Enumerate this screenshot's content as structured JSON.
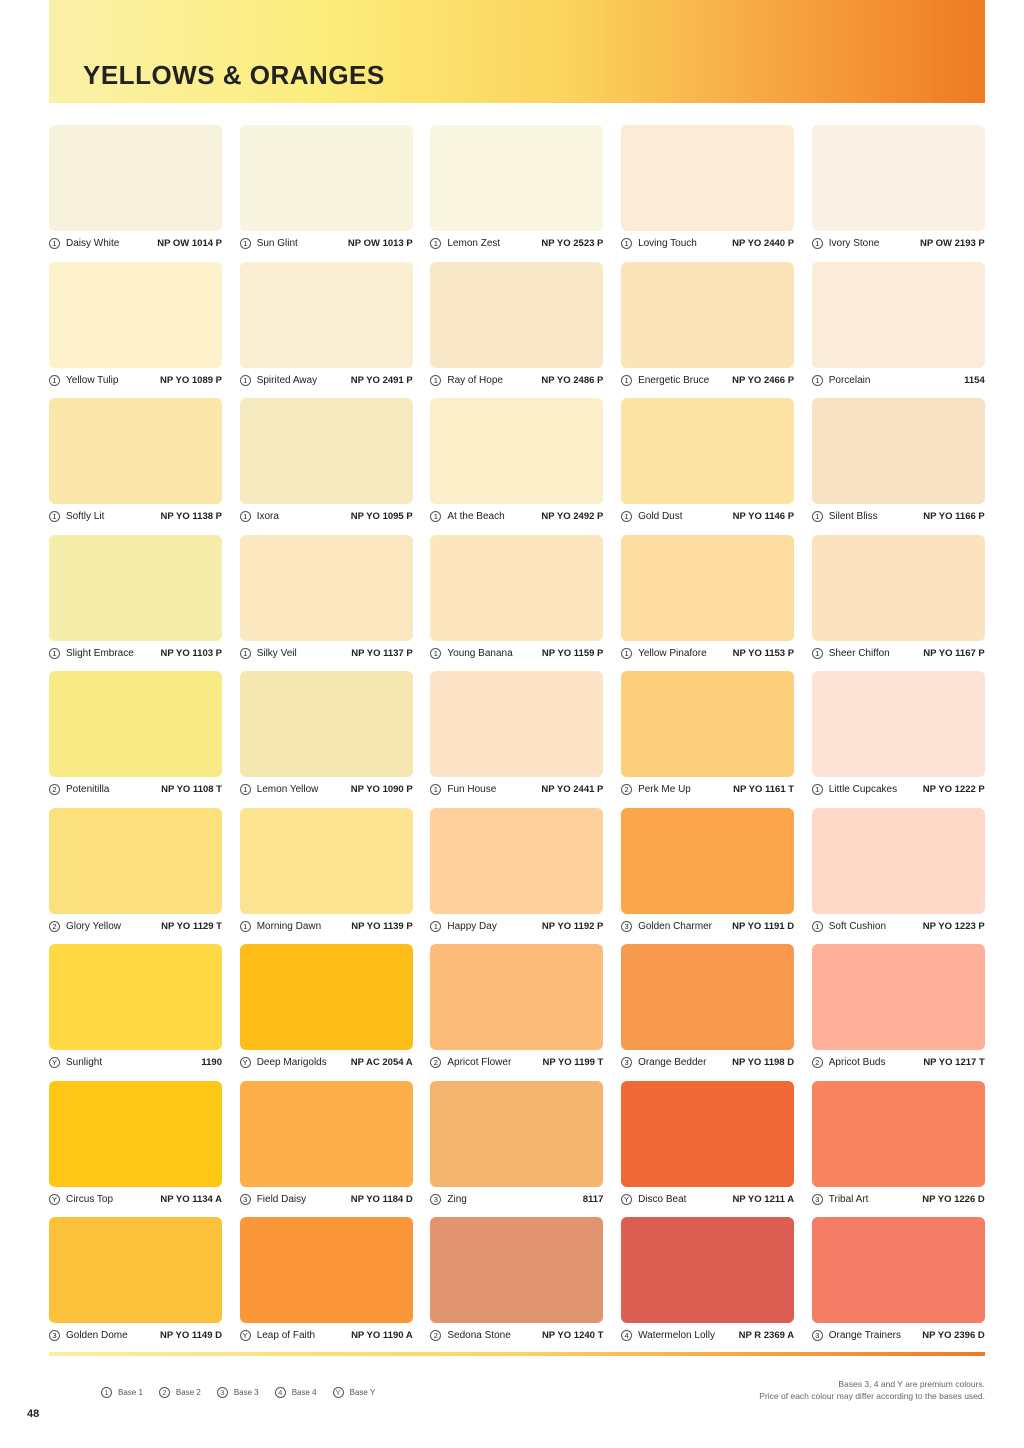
{
  "title": "YELLOWS & ORANGES",
  "colours": [
    {
      "base": "1",
      "name": "Daisy White",
      "code": "NP OW 1014 P",
      "hex": "#f8f2dc"
    },
    {
      "base": "1",
      "name": "Sun Glint",
      "code": "NP OW 1013 P",
      "hex": "#f8f4de"
    },
    {
      "base": "1",
      "name": "Lemon Zest",
      "code": "NP YO 2523 P",
      "hex": "#f8f6de"
    },
    {
      "base": "1",
      "name": "Loving Touch",
      "code": "NP YO 2440 P",
      "hex": "#fbecd6"
    },
    {
      "base": "1",
      "name": "Ivory Stone",
      "code": "NP OW 2193 P",
      "hex": "#fbf0e4"
    },
    {
      "base": "1",
      "name": "Yellow Tulip",
      "code": "NP YO 1089 P",
      "hex": "#fdf2cc"
    },
    {
      "base": "1",
      "name": "Spirited Away",
      "code": "NP YO 2491 P",
      "hex": "#faefd3"
    },
    {
      "base": "1",
      "name": "Ray of Hope",
      "code": "NP YO 2486 P",
      "hex": "#f9e8c8"
    },
    {
      "base": "1",
      "name": "Energetic Bruce",
      "code": "NP YO 2466 P",
      "hex": "#fbe4b8"
    },
    {
      "base": "1",
      "name": "Porcelain",
      "code": "1154",
      "hex": "#fbecd9"
    },
    {
      "base": "1",
      "name": "Softly Lit",
      "code": "NP YO 1138 P",
      "hex": "#fbe7aa"
    },
    {
      "base": "1",
      "name": "Ixora",
      "code": "NP YO 1095 P",
      "hex": "#f6ebc0"
    },
    {
      "base": "1",
      "name": "At the Beach",
      "code": "NP YO 2492 P",
      "hex": "#faefc9"
    },
    {
      "base": "1",
      "name": "Gold Dust",
      "code": "NP YO 1146 P",
      "hex": "#fde3a4"
    },
    {
      "base": "1",
      "name": "Silent Bliss",
      "code": "NP YO 1166 P",
      "hex": "#f7e2c4"
    },
    {
      "base": "1",
      "name": "Slight Embrace",
      "code": "NP YO 1103 P",
      "hex": "#f5eeaa"
    },
    {
      "base": "1",
      "name": "Silky Veil",
      "code": "NP YO 1137 P",
      "hex": "#fbe8c0"
    },
    {
      "base": "1",
      "name": "Young Banana",
      "code": "NP YO 1159 P",
      "hex": "#fde6be"
    },
    {
      "base": "1",
      "name": "Yellow Pinafore",
      "code": "NP YO 1153 P",
      "hex": "#fddca0"
    },
    {
      "base": "1",
      "name": "Sheer Chiffon",
      "code": "NP YO 1167 P",
      "hex": "#fce2be"
    },
    {
      "base": "2",
      "name": "Potenitilla",
      "code": "NP YO 1108 T",
      "hex": "#f8ea84"
    },
    {
      "base": "1",
      "name": "Lemon Yellow",
      "code": "NP YO 1090 P",
      "hex": "#f6e7b0"
    },
    {
      "base": "1",
      "name": "Fun House",
      "code": "NP YO 2441 P",
      "hex": "#fce3c6"
    },
    {
      "base": "2",
      "name": "Perk Me Up",
      "code": "NP YO 1161 T",
      "hex": "#fccf7a"
    },
    {
      "base": "1",
      "name": "Little Cupcakes",
      "code": "NP YO 1222 P",
      "hex": "#fde3d6"
    },
    {
      "base": "2",
      "name": "Glory Yellow",
      "code": "NP YO 1129 T",
      "hex": "#fde07e"
    },
    {
      "base": "1",
      "name": "Morning Dawn",
      "code": "NP YO 1139 P",
      "hex": "#fbe391"
    },
    {
      "base": "1",
      "name": "Happy Day",
      "code": "NP YO 1192 P",
      "hex": "#fed19c"
    },
    {
      "base": "3",
      "name": "Golden Charmer",
      "code": "NP YO 1191 D",
      "hex": "#fba54c"
    },
    {
      "base": "1",
      "name": "Soft Cushion",
      "code": "NP YO 1223 P",
      "hex": "#fed8c6"
    },
    {
      "base": "Y",
      "name": "Sunlight",
      "code": "1190",
      "hex": "#fed944"
    },
    {
      "base": "Y",
      "name": "Deep Marigolds",
      "code": "NP AC 2054 A",
      "hex": "#fdbe1a"
    },
    {
      "base": "2",
      "name": "Apricot Flower",
      "code": "NP YO 1199 T",
      "hex": "#fdbb7a"
    },
    {
      "base": "3",
      "name": "Orange Bedder",
      "code": "NP YO 1198 D",
      "hex": "#f89a4e"
    },
    {
      "base": "2",
      "name": "Apricot Buds",
      "code": "NP YO 1217 T",
      "hex": "#feb09a"
    },
    {
      "base": "Y",
      "name": "Circus Top",
      "code": "NP YO 1134 A",
      "hex": "#fec715"
    },
    {
      "base": "3",
      "name": "Field Daisy",
      "code": "NP YO 1184 D",
      "hex": "#fdb04a"
    },
    {
      "base": "3",
      "name": "Zing",
      "code": "8117",
      "hex": "#f4b56e"
    },
    {
      "base": "Y",
      "name": "Disco Beat",
      "code": "NP YO 1211 A",
      "hex": "#f06836"
    },
    {
      "base": "3",
      "name": "Tribal Art",
      "code": "NP YO 1226 D",
      "hex": "#f7845f"
    },
    {
      "base": "3",
      "name": "Golden Dome",
      "code": "NP YO 1149 D",
      "hex": "#fcc13b"
    },
    {
      "base": "Y",
      "name": "Leap of Faith",
      "code": "NP YO 1190 A",
      "hex": "#f99739"
    },
    {
      "base": "2",
      "name": "Sedona Stone",
      "code": "NP YO 1240 T",
      "hex": "#e2946f"
    },
    {
      "base": "4",
      "name": "Watermelon Lolly",
      "code": "NP R 2369 A",
      "hex": "#dc5d52"
    },
    {
      "base": "3",
      "name": "Orange Trainers",
      "code": "NP YO 2396 D",
      "hex": "#f47d66"
    }
  ],
  "legend": [
    {
      "base": "1",
      "label": "Base 1"
    },
    {
      "base": "2",
      "label": "Base 2"
    },
    {
      "base": "3",
      "label": "Base 3"
    },
    {
      "base": "4",
      "label": "Base 4"
    },
    {
      "base": "Y",
      "label": "Base Y"
    }
  ],
  "note": [
    "Bases 3, 4 and Y are premium colours.",
    "Price of each colour may differ according to the bases used."
  ],
  "page_number": "48"
}
